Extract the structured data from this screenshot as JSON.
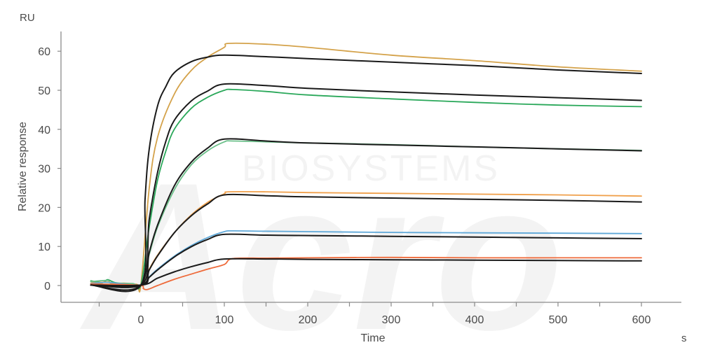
{
  "watermark": {
    "text": "BIOSYSTEMS",
    "logo_text": "Acro"
  },
  "chart_data": {
    "type": "line",
    "title": "",
    "xlabel": "Time",
    "ylabel": "Relative response",
    "x_unit": "s",
    "y_unit": "RU",
    "xlim": [
      -62,
      608
    ],
    "ylim": [
      -3,
      66
    ],
    "x_ticks": [
      0,
      100,
      200,
      300,
      400,
      500,
      600
    ],
    "y_ticks": [
      0,
      10,
      20,
      30,
      40,
      50,
      60
    ],
    "grid": false,
    "legend": "none",
    "association_end": 100,
    "series": [
      {
        "kind": "measured",
        "color": "#d4a24a",
        "points": [
          [
            -60,
            1.0
          ],
          [
            -48,
            0.6
          ],
          [
            -40,
            1.4
          ],
          [
            -35,
            0.5
          ],
          [
            -20,
            0.6
          ],
          [
            -5,
            0.3
          ],
          [
            0,
            0.2
          ],
          [
            10,
            25
          ],
          [
            20,
            38
          ],
          [
            40,
            49
          ],
          [
            60,
            55
          ],
          [
            80,
            58.5
          ],
          [
            100,
            61
          ],
          [
            105,
            62
          ],
          [
            150,
            61.8
          ],
          [
            200,
            61.0
          ],
          [
            300,
            59.0
          ],
          [
            400,
            57.6
          ],
          [
            500,
            56.0
          ],
          [
            600,
            54.9
          ]
        ]
      },
      {
        "kind": "fit",
        "color": "#1a1a1a",
        "points": [
          [
            -60,
            0.1
          ],
          [
            0,
            0.1
          ],
          [
            5,
            22
          ],
          [
            10,
            35
          ],
          [
            20,
            46
          ],
          [
            30,
            51
          ],
          [
            40,
            54.5
          ],
          [
            60,
            57.3
          ],
          [
            80,
            58.5
          ],
          [
            100,
            59.0
          ],
          [
            150,
            58.6
          ],
          [
            200,
            58.1
          ],
          [
            300,
            57.2
          ],
          [
            400,
            56.3
          ],
          [
            500,
            55.2
          ],
          [
            600,
            54.3
          ]
        ]
      },
      {
        "kind": "fit",
        "color": "#1a1a1a",
        "points": [
          [
            -60,
            0.1
          ],
          [
            0,
            0.1
          ],
          [
            10,
            17
          ],
          [
            20,
            29
          ],
          [
            30,
            37
          ],
          [
            40,
            42.3
          ],
          [
            60,
            47.2
          ],
          [
            80,
            49.8
          ],
          [
            100,
            51.6
          ],
          [
            150,
            51.2
          ],
          [
            200,
            50.5
          ],
          [
            300,
            49.6
          ],
          [
            400,
            48.8
          ],
          [
            500,
            48.1
          ],
          [
            600,
            47.4
          ]
        ]
      },
      {
        "kind": "measured",
        "color": "#2aa85a",
        "points": [
          [
            -60,
            1.2
          ],
          [
            -45,
            0.8
          ],
          [
            -40,
            1.5
          ],
          [
            -30,
            0.7
          ],
          [
            -10,
            0.4
          ],
          [
            0,
            0.2
          ],
          [
            10,
            15
          ],
          [
            20,
            27
          ],
          [
            30,
            34.5
          ],
          [
            40,
            40
          ],
          [
            60,
            45.3
          ],
          [
            80,
            48.2
          ],
          [
            100,
            50.0
          ],
          [
            110,
            50.2
          ],
          [
            150,
            49.7
          ],
          [
            200,
            48.8
          ],
          [
            300,
            47.8
          ],
          [
            400,
            46.9
          ],
          [
            500,
            46.2
          ],
          [
            600,
            45.8
          ]
        ]
      },
      {
        "kind": "fit",
        "color": "#1a1a1a",
        "points": [
          [
            -60,
            0.1
          ],
          [
            0,
            0.1
          ],
          [
            10,
            8.5
          ],
          [
            20,
            15.5
          ],
          [
            40,
            25.5
          ],
          [
            60,
            31.5
          ],
          [
            80,
            35.2
          ],
          [
            100,
            37.5
          ],
          [
            150,
            37.0
          ],
          [
            200,
            36.5
          ],
          [
            300,
            36.0
          ],
          [
            400,
            35.5
          ],
          [
            500,
            35.0
          ],
          [
            600,
            34.5
          ]
        ]
      },
      {
        "kind": "measured",
        "color": "#6cc08a",
        "points": [
          [
            -60,
            1.0
          ],
          [
            -40,
            1.3
          ],
          [
            -35,
            0.6
          ],
          [
            -10,
            0.5
          ],
          [
            0,
            0.2
          ],
          [
            10,
            8
          ],
          [
            20,
            15
          ],
          [
            40,
            24.5
          ],
          [
            60,
            30.8
          ],
          [
            80,
            34.5
          ],
          [
            100,
            36.8
          ],
          [
            110,
            37.0
          ],
          [
            150,
            36.8
          ],
          [
            200,
            36.5
          ],
          [
            300,
            36.1
          ],
          [
            400,
            35.5
          ],
          [
            500,
            35.0
          ],
          [
            600,
            34.6
          ]
        ]
      },
      {
        "kind": "measured",
        "color": "#f0a04b",
        "points": [
          [
            -60,
            0.6
          ],
          [
            -40,
            0.9
          ],
          [
            -30,
            0.4
          ],
          [
            0,
            0.1
          ],
          [
            10,
            4.2
          ],
          [
            20,
            7.8
          ],
          [
            40,
            13.5
          ],
          [
            60,
            18
          ],
          [
            80,
            21.3
          ],
          [
            100,
            23.5
          ],
          [
            105,
            24.0
          ],
          [
            150,
            24.0
          ],
          [
            200,
            23.8
          ],
          [
            300,
            23.6
          ],
          [
            400,
            23.4
          ],
          [
            500,
            23.2
          ],
          [
            600,
            22.9
          ]
        ]
      },
      {
        "kind": "fit",
        "color": "#1a1a1a",
        "points": [
          [
            -60,
            0.1
          ],
          [
            0,
            0.1
          ],
          [
            10,
            4.0
          ],
          [
            20,
            7.6
          ],
          [
            40,
            13.5
          ],
          [
            60,
            17.8
          ],
          [
            80,
            20.9
          ],
          [
            100,
            23.2
          ],
          [
            150,
            23.0
          ],
          [
            200,
            22.7
          ],
          [
            300,
            22.4
          ],
          [
            400,
            22.1
          ],
          [
            500,
            21.8
          ],
          [
            600,
            21.4
          ]
        ]
      },
      {
        "kind": "measured",
        "color": "#5fa8d8",
        "points": [
          [
            -60,
            0.5
          ],
          [
            -40,
            0.8
          ],
          [
            0,
            0.1
          ],
          [
            10,
            2.2
          ],
          [
            20,
            4.2
          ],
          [
            40,
            7.5
          ],
          [
            60,
            10.2
          ],
          [
            80,
            12.3
          ],
          [
            100,
            13.8
          ],
          [
            110,
            14.0
          ],
          [
            150,
            13.9
          ],
          [
            200,
            13.8
          ],
          [
            300,
            13.6
          ],
          [
            400,
            13.5
          ],
          [
            500,
            13.4
          ],
          [
            600,
            13.3
          ]
        ]
      },
      {
        "kind": "fit",
        "color": "#1a1a1a",
        "points": [
          [
            -60,
            0.1
          ],
          [
            0,
            0.1
          ],
          [
            10,
            2.1
          ],
          [
            20,
            4.0
          ],
          [
            40,
            7.3
          ],
          [
            60,
            9.9
          ],
          [
            80,
            11.8
          ],
          [
            100,
            13.1
          ],
          [
            150,
            12.9
          ],
          [
            200,
            12.8
          ],
          [
            300,
            12.6
          ],
          [
            400,
            12.4
          ],
          [
            500,
            12.2
          ],
          [
            600,
            12.0
          ]
        ]
      },
      {
        "kind": "measured",
        "color": "#ee6a3a",
        "points": [
          [
            -60,
            0.4
          ],
          [
            -30,
            0.3
          ],
          [
            0,
            0.0
          ],
          [
            3,
            -0.8
          ],
          [
            8,
            -1.0
          ],
          [
            20,
            0.0
          ],
          [
            40,
            1.6
          ],
          [
            60,
            2.9
          ],
          [
            80,
            4.2
          ],
          [
            100,
            5.4
          ],
          [
            110,
            6.9
          ],
          [
            150,
            7.0
          ],
          [
            200,
            7.1
          ],
          [
            300,
            7.2
          ],
          [
            400,
            7.1
          ],
          [
            500,
            7.1
          ],
          [
            600,
            7.1
          ]
        ]
      },
      {
        "kind": "fit",
        "color": "#1a1a1a",
        "points": [
          [
            -60,
            0.1
          ],
          [
            0,
            0.1
          ],
          [
            20,
            1.9
          ],
          [
            40,
            3.5
          ],
          [
            60,
            4.8
          ],
          [
            80,
            5.9
          ],
          [
            100,
            6.8
          ],
          [
            150,
            6.8
          ],
          [
            200,
            6.7
          ],
          [
            300,
            6.6
          ],
          [
            400,
            6.5
          ],
          [
            500,
            6.4
          ],
          [
            600,
            6.3
          ]
        ]
      }
    ]
  }
}
